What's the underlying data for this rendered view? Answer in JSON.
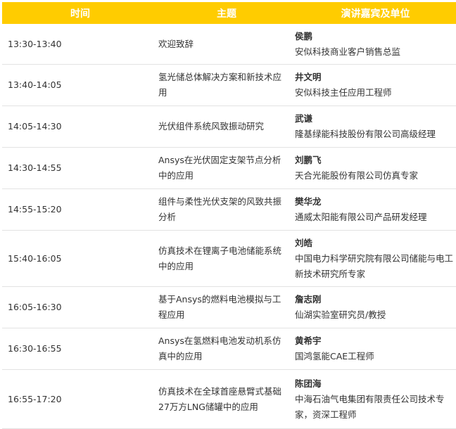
{
  "header": {
    "time": "时间",
    "topic": "主题",
    "speaker": "演讲嘉宾及单位"
  },
  "header_color": "#FFCC00",
  "rows": [
    {
      "time": "13:30-13:40",
      "topic": "欢迎致辞",
      "name": "侯鹏",
      "org": "安似科技商业客户销售总监"
    },
    {
      "time": "13:40-14:05",
      "topic": "氢光储总体解决方案和新技术应用",
      "name": "井文明",
      "org": "安似科技主任应用工程师"
    },
    {
      "time": "14:05-14:30",
      "topic": "光伏组件系统风致振动研究",
      "name": "武谦",
      "org": "隆基绿能科技股份有限公司高级经理"
    },
    {
      "time": "14:30-14:55",
      "topic": "Ansys在光伏固定支架节点分析中的应用",
      "name": "刘鹏飞",
      "org": "天合光能股份有限公司仿真专家"
    },
    {
      "time": "14:55-15:20",
      "topic": "组件与柔性光伏支架的风致共振分析",
      "name": "樊华龙",
      "org": "通威太阳能有限公司产品研发经理"
    },
    {
      "time": "15:40-16:05",
      "topic": "仿真技术在锂离子电池储能系统中的应用",
      "name": "刘皓",
      "org": "中国电力科学研究院有限公司储能与电工新技术研究所专家"
    },
    {
      "time": "16:05-16:30",
      "topic": "基于Ansys的燃料电池模拟与工程应用",
      "name": "詹志刚",
      "org": "仙湖实验室研究员/教授"
    },
    {
      "time": "16:30-16:55",
      "topic": "Ansys在氢燃料电池发动机系仿真中的应用",
      "name": "黄希宇",
      "org": "国鸿氢能CAE工程师"
    },
    {
      "time": "16:55-17:20",
      "topic": "仿真技术在全球首座悬臂式基础27万方LNG储罐中的应用",
      "name": "陈团海",
      "org": "中海石油气电集团有限责任公司技术专家，资深工程师"
    }
  ]
}
